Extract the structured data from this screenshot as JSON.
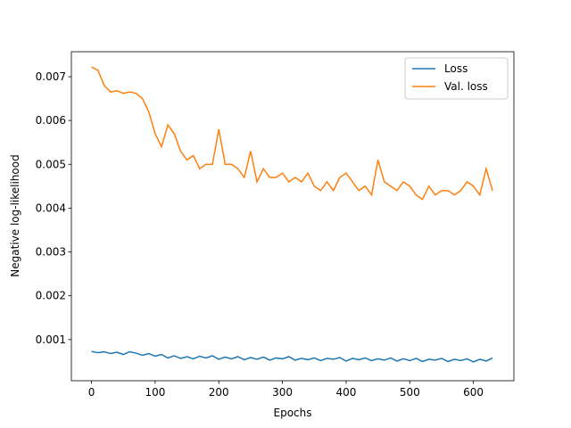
{
  "chart_data": {
    "type": "line",
    "xlabel": "Epochs",
    "ylabel": "Negative log-likelihood",
    "x": [
      0,
      10,
      20,
      30,
      40,
      50,
      60,
      70,
      80,
      90,
      100,
      110,
      120,
      130,
      140,
      150,
      160,
      170,
      180,
      190,
      200,
      210,
      220,
      230,
      240,
      250,
      260,
      270,
      280,
      290,
      300,
      310,
      320,
      330,
      340,
      350,
      360,
      370,
      380,
      390,
      400,
      410,
      420,
      430,
      440,
      450,
      460,
      470,
      480,
      490,
      500,
      510,
      520,
      530,
      540,
      550,
      560,
      570,
      580,
      590,
      600,
      610,
      620,
      630
    ],
    "series": [
      {
        "name": "Loss",
        "color": "#1f77b4",
        "values": [
          0.00073,
          0.0007,
          0.00072,
          0.00068,
          0.00071,
          0.00066,
          0.00072,
          0.00069,
          0.00064,
          0.00068,
          0.00062,
          0.00066,
          0.00058,
          0.00063,
          0.00057,
          0.00061,
          0.00056,
          0.00062,
          0.00058,
          0.00063,
          0.00055,
          0.0006,
          0.00056,
          0.00061,
          0.00054,
          0.00059,
          0.00055,
          0.0006,
          0.00053,
          0.00058,
          0.00056,
          0.00061,
          0.00053,
          0.00057,
          0.00054,
          0.00058,
          0.00052,
          0.00057,
          0.00055,
          0.00059,
          0.00051,
          0.00057,
          0.00054,
          0.00058,
          0.00052,
          0.00056,
          0.00053,
          0.00058,
          0.00051,
          0.00056,
          0.00052,
          0.00057,
          0.0005,
          0.00055,
          0.00053,
          0.00057,
          0.0005,
          0.00055,
          0.00052,
          0.00056,
          0.00049,
          0.00055,
          0.00051,
          0.00058
        ]
      },
      {
        "name": "Val. loss",
        "color": "#ff7f0e",
        "values": [
          0.00722,
          0.00715,
          0.0068,
          0.00665,
          0.00668,
          0.00662,
          0.00665,
          0.00662,
          0.0065,
          0.0062,
          0.0057,
          0.0054,
          0.0059,
          0.0057,
          0.0053,
          0.0051,
          0.0052,
          0.0049,
          0.005,
          0.005,
          0.0058,
          0.005,
          0.005,
          0.0049,
          0.0047,
          0.0053,
          0.0046,
          0.0049,
          0.0047,
          0.0047,
          0.0048,
          0.0046,
          0.0047,
          0.0046,
          0.0048,
          0.0045,
          0.0044,
          0.0046,
          0.0044,
          0.0047,
          0.0048,
          0.0046,
          0.0044,
          0.0045,
          0.0043,
          0.0051,
          0.0046,
          0.0045,
          0.0044,
          0.0046,
          0.0045,
          0.0043,
          0.0042,
          0.0045,
          0.0043,
          0.0044,
          0.0044,
          0.0043,
          0.0044,
          0.0046,
          0.0045,
          0.0043,
          0.0049,
          0.0044
        ]
      }
    ],
    "xlim": [
      -31.6,
      663.6
    ],
    "xticks": [
      0,
      100,
      200,
      300,
      400,
      500,
      600
    ],
    "ylim": [
      6e-05,
      0.00757
    ],
    "yticks": [
      0.001,
      0.002,
      0.003,
      0.004,
      0.005,
      0.006,
      0.007
    ],
    "legend": "upper right"
  }
}
